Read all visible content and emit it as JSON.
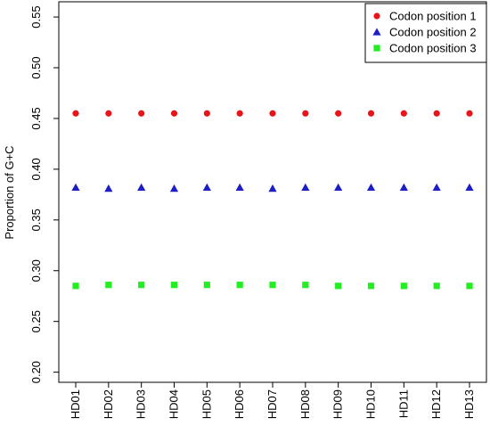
{
  "chart_data": {
    "type": "scatter",
    "title": "",
    "xlabel": "",
    "ylabel": "Proportion of G+C",
    "categories": [
      "HD01",
      "HD02",
      "HD03",
      "HD04",
      "HD05",
      "HD06",
      "HD07",
      "HD08",
      "HD09",
      "HD10",
      "HD11",
      "HD12",
      "HD13"
    ],
    "ylim": [
      0.19,
      0.565
    ],
    "yticks": [
      "0.20",
      "0.25",
      "0.30",
      "0.35",
      "0.40",
      "0.45",
      "0.50",
      "0.55"
    ],
    "grid": false,
    "legend_position": "top-right",
    "series": [
      {
        "name": "Codon position 1",
        "marker": "circle",
        "color": "#e8141c",
        "values": [
          0.455,
          0.455,
          0.455,
          0.455,
          0.455,
          0.455,
          0.455,
          0.455,
          0.455,
          0.455,
          0.455,
          0.455,
          0.455
        ]
      },
      {
        "name": "Codon position 2",
        "marker": "triangle",
        "color": "#1e1ec8",
        "values": [
          0.382,
          0.381,
          0.382,
          0.381,
          0.382,
          0.382,
          0.381,
          0.382,
          0.382,
          0.382,
          0.382,
          0.382,
          0.382
        ]
      },
      {
        "name": "Codon position 3",
        "marker": "square",
        "color": "#22ee22",
        "values": [
          0.285,
          0.286,
          0.286,
          0.286,
          0.286,
          0.286,
          0.286,
          0.286,
          0.285,
          0.285,
          0.285,
          0.285,
          0.285
        ]
      }
    ]
  }
}
